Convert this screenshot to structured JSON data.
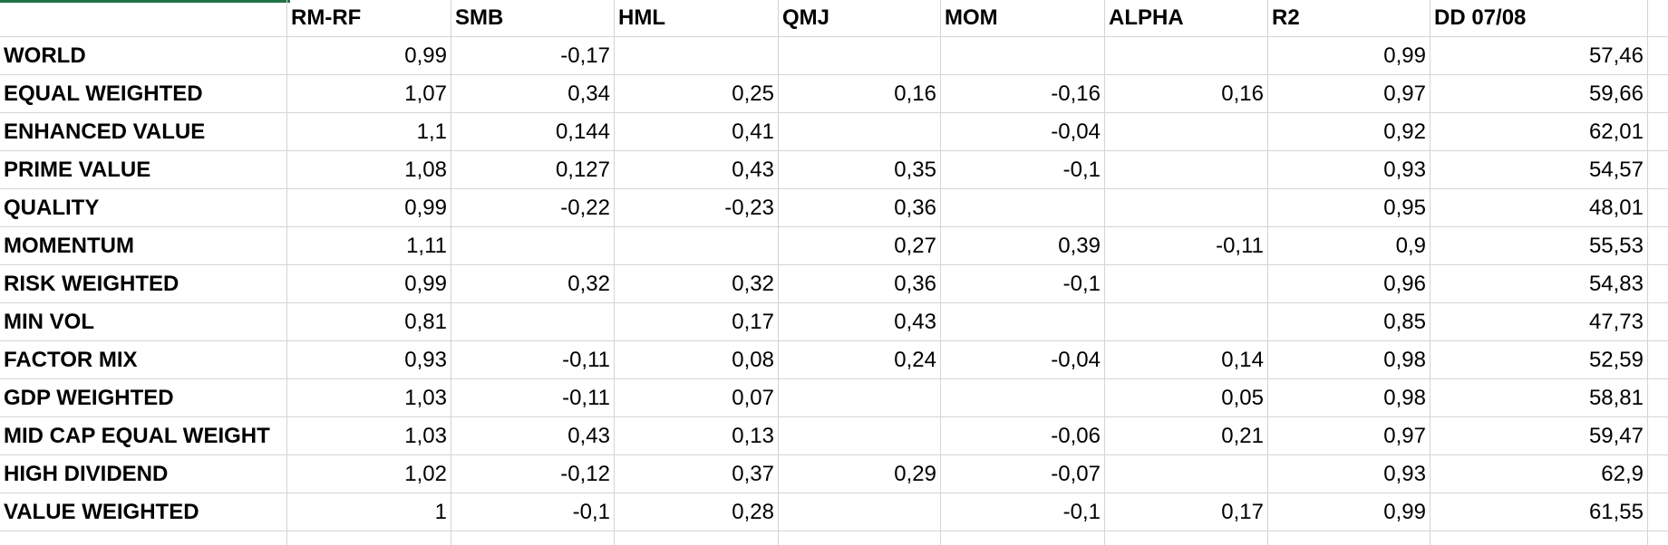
{
  "table": {
    "columns": [
      "RM-RF",
      "SMB",
      "HML",
      "QMJ",
      "MOM",
      "ALPHA",
      "R2",
      "DD 07/08"
    ],
    "rows": [
      {
        "label": "WORLD",
        "cells": [
          "0,99",
          "-0,17",
          null,
          null,
          null,
          null,
          "0,99",
          "57,46"
        ]
      },
      {
        "label": "EQUAL WEIGHTED",
        "cells": [
          "1,07",
          "0,34",
          "0,25",
          "0,16",
          "-0,16",
          "0,16",
          "0,97",
          "59,66"
        ]
      },
      {
        "label": "ENHANCED VALUE",
        "cells": [
          "1,1",
          "0,144",
          "0,41",
          null,
          "-0,04",
          null,
          "0,92",
          "62,01"
        ]
      },
      {
        "label": "PRIME VALUE",
        "cells": [
          "1,08",
          "0,127",
          "0,43",
          "0,35",
          "-0,1",
          null,
          "0,93",
          "54,57"
        ]
      },
      {
        "label": "QUALITY",
        "cells": [
          "0,99",
          "-0,22",
          "-0,23",
          "0,36",
          null,
          null,
          "0,95",
          "48,01"
        ]
      },
      {
        "label": "MOMENTUM",
        "cells": [
          "1,11",
          null,
          null,
          "0,27",
          "0,39",
          "-0,11",
          "0,9",
          "55,53"
        ]
      },
      {
        "label": "RISK WEIGHTED",
        "cells": [
          "0,99",
          "0,32",
          "0,32",
          "0,36",
          "-0,1",
          null,
          "0,96",
          "54,83"
        ]
      },
      {
        "label": "MIN VOL",
        "cells": [
          "0,81",
          null,
          "0,17",
          "0,43",
          null,
          null,
          "0,85",
          "47,73"
        ]
      },
      {
        "label": "FACTOR MIX",
        "cells": [
          "0,93",
          "-0,11",
          "0,08",
          "0,24",
          "-0,04",
          "0,14",
          "0,98",
          "52,59"
        ]
      },
      {
        "label": "GDP WEIGHTED",
        "cells": [
          "1,03",
          "-0,11",
          "0,07",
          null,
          null,
          "0,05",
          "0,98",
          "58,81"
        ]
      },
      {
        "label": "MID CAP EQUAL WEIGHT",
        "cells": [
          "1,03",
          "0,43",
          "0,13",
          null,
          "-0,06",
          "0,21",
          "0,97",
          "59,47"
        ]
      },
      {
        "label": "HIGH DIVIDEND",
        "cells": [
          "1,02",
          "-0,12",
          "0,37",
          "0,29",
          "-0,07",
          null,
          "0,93",
          "62,9"
        ]
      },
      {
        "label": "VALUE WEIGHTED",
        "cells": [
          "1",
          "-0,1",
          "0,28",
          null,
          "-0,1",
          "0,17",
          "0,99",
          "61,55"
        ]
      }
    ]
  }
}
